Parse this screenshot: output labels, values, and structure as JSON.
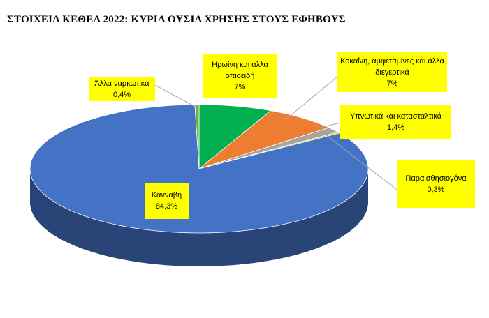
{
  "chart_data": {
    "type": "pie3d",
    "title": "ΣΤΟΙΧΕΙΑ ΚΕΘΕΑ 2022: ΚΥΡΙΑ ΟΥΣΙΑ ΧΡΗΣΗΣ ΣΤΟΥΣ ΕΦΗΒΟΥΣ",
    "categories": [
      "Ηρωίνη και άλλα οπιοειδή",
      "Κοκαΐνη, αμφεταμίνες και άλλα διεγερτικά",
      "Υπνωτικά και κατασταλτικά",
      "Παραισθησιογόνα",
      "Κάνναβη",
      "Άλλα ναρκωτικά"
    ],
    "values": [
      7,
      7,
      1.4,
      0.3,
      84.3,
      0.4
    ],
    "value_labels": [
      "7%",
      "7%",
      "1,4%",
      "0,3%",
      "84,3%",
      "0,4%"
    ],
    "colors": [
      "#00b050",
      "#ed7d31",
      "#a5a5a5",
      "#ffc000",
      "#4472c4",
      "#70ad47"
    ]
  }
}
